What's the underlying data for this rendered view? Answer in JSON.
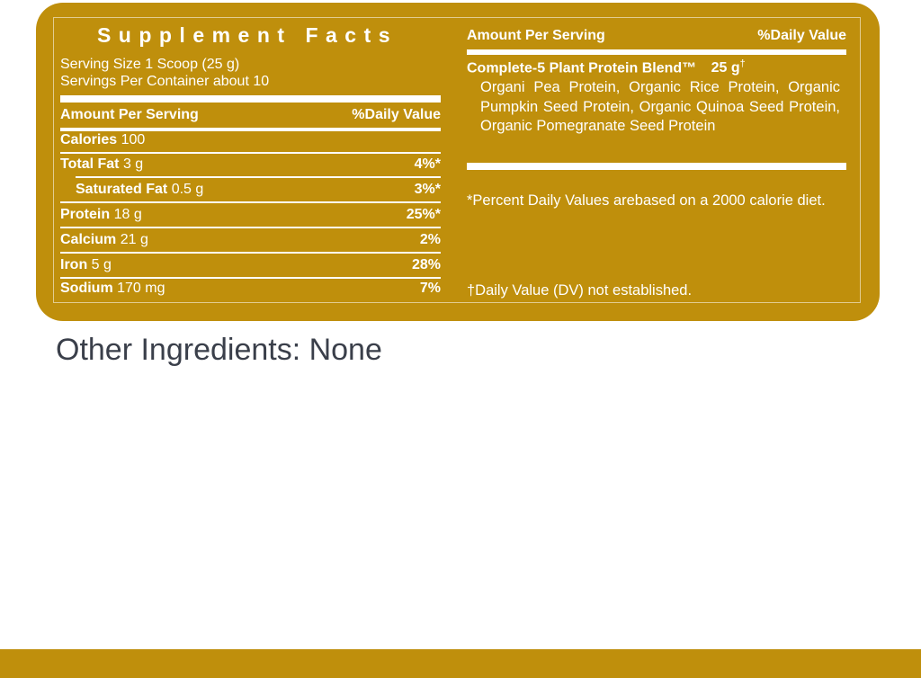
{
  "colors": {
    "panel": "#bf8f0c",
    "text_on_panel": "#ffffff",
    "other_text": "#3a3f4a"
  },
  "title": "Supplement Facts",
  "serving_size": "Serving Size 1 Scoop (25 g)",
  "servings_per_container": "Servings Per Container about 10",
  "left_header": {
    "amount": "Amount Per Serving",
    "dv": "%Daily Value"
  },
  "nutrients": [
    {
      "name": "Calories",
      "amount": "100",
      "dv": ""
    },
    {
      "name": "Total Fat",
      "amount": "3 g",
      "dv": "4%*"
    },
    {
      "name": "Saturated Fat",
      "amount": "0.5 g",
      "dv": "3%*"
    },
    {
      "name": "Protein",
      "amount": "18 g",
      "dv": "25%*"
    },
    {
      "name": "Calcium",
      "amount": "21 g",
      "dv": "2%"
    },
    {
      "name": "Iron",
      "amount": "5 g",
      "dv": "28%"
    },
    {
      "name": "Sodium",
      "amount": "170 mg",
      "dv": "7%"
    }
  ],
  "right_header": {
    "amount": "Amount Per Serving",
    "dv": "%Daily Value"
  },
  "blend": {
    "name": "Complete-5 Plant Protein Blend™",
    "amount": "25 g",
    "mark": "†",
    "ingredients": "Organi Pea Protein, Organic Rice Protein, Organic Pumpkin Seed Protein, Organic Quinoa Seed Protein, Organic Pomegranate Seed Protein"
  },
  "footnote_percent": "*Percent Daily Values arebased on a 2000 calorie diet.",
  "footnote_dagger": "†Daily Value (DV) not established.",
  "other_ingredients": "Other Ingredients: None"
}
